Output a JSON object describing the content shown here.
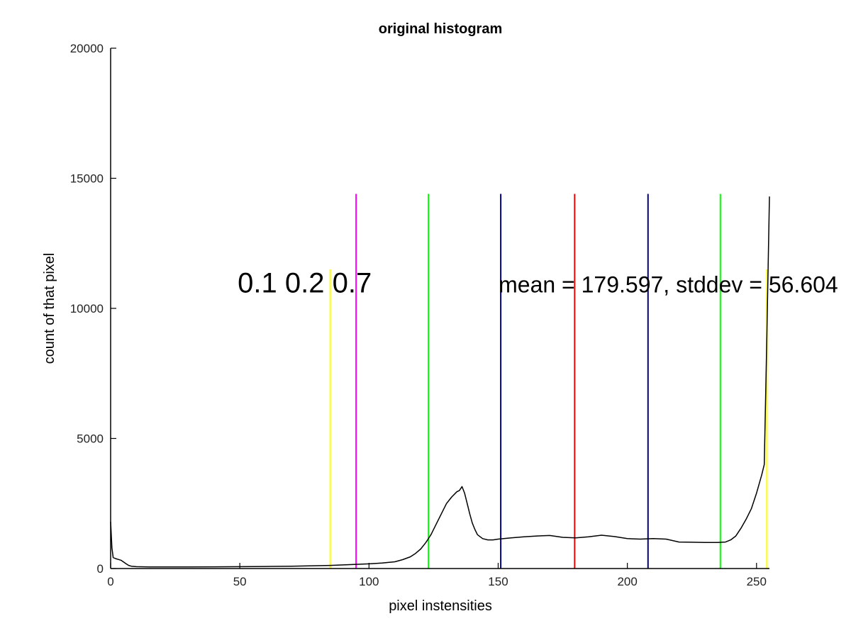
{
  "chart_data": {
    "type": "line",
    "title": "original histogram",
    "xlabel": "pixel instensities",
    "ylabel": "count of that pixel",
    "xlim": [
      0,
      255
    ],
    "ylim": [
      0,
      20000
    ],
    "xticks": [
      0,
      50,
      100,
      150,
      200,
      250
    ],
    "yticks": [
      0,
      5000,
      10000,
      15000,
      20000
    ],
    "grid": false,
    "legend": "none",
    "series": [
      {
        "color": "#000000",
        "x": [
          0,
          0.5,
          1,
          2,
          3,
          4,
          5,
          6,
          7,
          8,
          10,
          15,
          20,
          30,
          40,
          50,
          60,
          70,
          80,
          85,
          90,
          95,
          100,
          105,
          110,
          113,
          116,
          118,
          120,
          122,
          124,
          126,
          128,
          130,
          132,
          134,
          135,
          136,
          137,
          138,
          139,
          140,
          141,
          142,
          144,
          146,
          148,
          150,
          155,
          160,
          165,
          170,
          175,
          180,
          185,
          190,
          195,
          200,
          205,
          210,
          215,
          220,
          225,
          230,
          235,
          238,
          240,
          242,
          244,
          246,
          248,
          250,
          252,
          253,
          254,
          255
        ],
        "y": [
          1800,
          800,
          420,
          380,
          350,
          320,
          250,
          180,
          120,
          90,
          70,
          60,
          60,
          60,
          65,
          70,
          80,
          90,
          110,
          120,
          140,
          160,
          180,
          210,
          260,
          340,
          450,
          580,
          750,
          1000,
          1300,
          1700,
          2100,
          2500,
          2750,
          2950,
          3000,
          3150,
          2900,
          2500,
          2100,
          1750,
          1500,
          1300,
          1150,
          1100,
          1100,
          1130,
          1180,
          1220,
          1250,
          1270,
          1200,
          1180,
          1220,
          1280,
          1230,
          1150,
          1130,
          1150,
          1130,
          1020,
          1010,
          1000,
          1000,
          1020,
          1100,
          1250,
          1550,
          1900,
          2300,
          2900,
          3600,
          4000,
          9000,
          14300
        ]
      }
    ],
    "vlines": [
      {
        "x": 85,
        "color": "#ffff00",
        "ymax": 11500
      },
      {
        "x": 95,
        "color": "#ff00ff",
        "ymax": 14400
      },
      {
        "x": 123,
        "color": "#00ff00",
        "ymax": 14400
      },
      {
        "x": 151,
        "color": "#000080",
        "ymax": 14400
      },
      {
        "x": 179.597,
        "color": "#ff0000",
        "ymax": 14400
      },
      {
        "x": 208,
        "color": "#000080",
        "ymax": 14400
      },
      {
        "x": 236,
        "color": "#00ff00",
        "ymax": 14400
      },
      {
        "x": 254,
        "color": "#ffff00",
        "ymax": 11500
      }
    ],
    "annotations": [
      {
        "text": "0.1 0.2 0.7",
        "x": 50,
        "y": 11000,
        "style": "large"
      },
      {
        "text": "mean = 179.597, stddev = 56.604",
        "x": 151,
        "y": 11000,
        "style": "stats"
      }
    ]
  }
}
